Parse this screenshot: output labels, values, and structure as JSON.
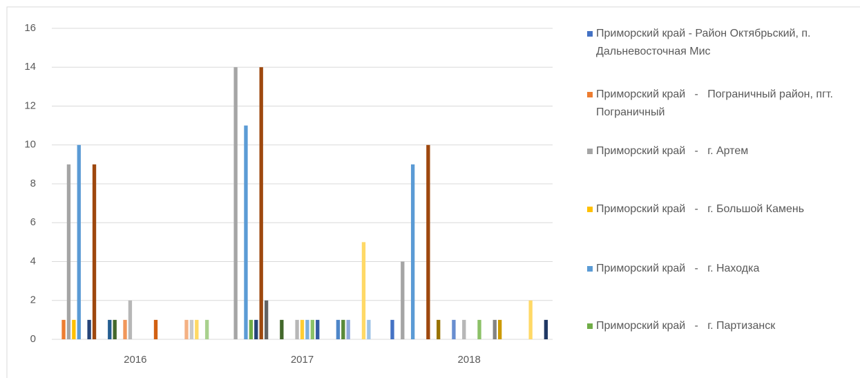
{
  "chart_data": {
    "type": "bar",
    "categories": [
      "2016",
      "2017",
      "2018"
    ],
    "ylim": [
      0,
      16
    ],
    "yticks": [
      0,
      2,
      4,
      6,
      8,
      10,
      12,
      14,
      16
    ],
    "grid": true,
    "legend": "right",
    "series": [
      {
        "name": "Приморский край - Район Октябрьский, п. Дальневосточная Мис",
        "color": "#4472c4",
        "values": [
          0,
          0,
          1
        ]
      },
      {
        "name": "Приморский край   -   Пограничный район, пгт. Пограничный",
        "color": "#ed7d31",
        "values": [
          1,
          0,
          0
        ]
      },
      {
        "name": "Приморский край   -   г. Артем",
        "color": "#a5a5a5",
        "values": [
          9,
          14,
          4
        ]
      },
      {
        "name": "Приморский край   -   г. Большой Камень",
        "color": "#ffc000",
        "values": [
          1,
          0,
          0
        ]
      },
      {
        "name": "Приморский край   -   г. Находка",
        "color": "#5b9bd5",
        "values": [
          10,
          11,
          9
        ]
      },
      {
        "name": "Приморский край   -   г. Партизанск",
        "color": "#70ad47",
        "values": [
          0,
          1,
          0
        ]
      },
      {
        "color": "#264478",
        "values": [
          1,
          1,
          0
        ]
      },
      {
        "color": "#9e480e",
        "values": [
          9,
          14,
          10
        ]
      },
      {
        "color": "#636363",
        "values": [
          0,
          2,
          0
        ]
      },
      {
        "color": "#997300",
        "values": [
          0,
          0,
          1
        ]
      },
      {
        "color": "#255e91",
        "values": [
          1,
          0,
          0
        ]
      },
      {
        "color": "#43682b",
        "values": [
          1,
          1,
          0
        ]
      },
      {
        "color": "#698ed0",
        "values": [
          0,
          0,
          1
        ]
      },
      {
        "color": "#f1975a",
        "values": [
          1,
          0,
          0
        ]
      },
      {
        "color": "#b7b7b7",
        "values": [
          2,
          1,
          1
        ]
      },
      {
        "color": "#ffcd33",
        "values": [
          0,
          1,
          0
        ]
      },
      {
        "color": "#7cafdd",
        "values": [
          0,
          1,
          0
        ]
      },
      {
        "color": "#8cc168",
        "values": [
          0,
          1,
          1
        ]
      },
      {
        "color": "#335aa1",
        "values": [
          0,
          1,
          0
        ]
      },
      {
        "color": "#d26012",
        "values": [
          1,
          0,
          0
        ]
      },
      {
        "color": "#848484",
        "values": [
          0,
          0,
          1
        ]
      },
      {
        "color": "#cc9a00",
        "values": [
          0,
          0,
          1
        ]
      },
      {
        "color": "#4e86c8",
        "values": [
          0,
          1,
          0
        ]
      },
      {
        "color": "#5a8a39",
        "values": [
          0,
          1,
          0
        ]
      },
      {
        "color": "#8faadc",
        "values": [
          0,
          1,
          0
        ]
      },
      {
        "color": "#f4b183",
        "values": [
          1,
          0,
          0
        ]
      },
      {
        "color": "#c9c9c9",
        "values": [
          1,
          0,
          0
        ]
      },
      {
        "color": "#ffd966",
        "values": [
          1,
          5,
          2
        ]
      },
      {
        "color": "#9dc3e6",
        "values": [
          0,
          1,
          0
        ]
      },
      {
        "color": "#a9d18e",
        "values": [
          1,
          0,
          0
        ]
      },
      {
        "color": "#203864",
        "values": [
          0,
          0,
          1
        ]
      }
    ]
  }
}
